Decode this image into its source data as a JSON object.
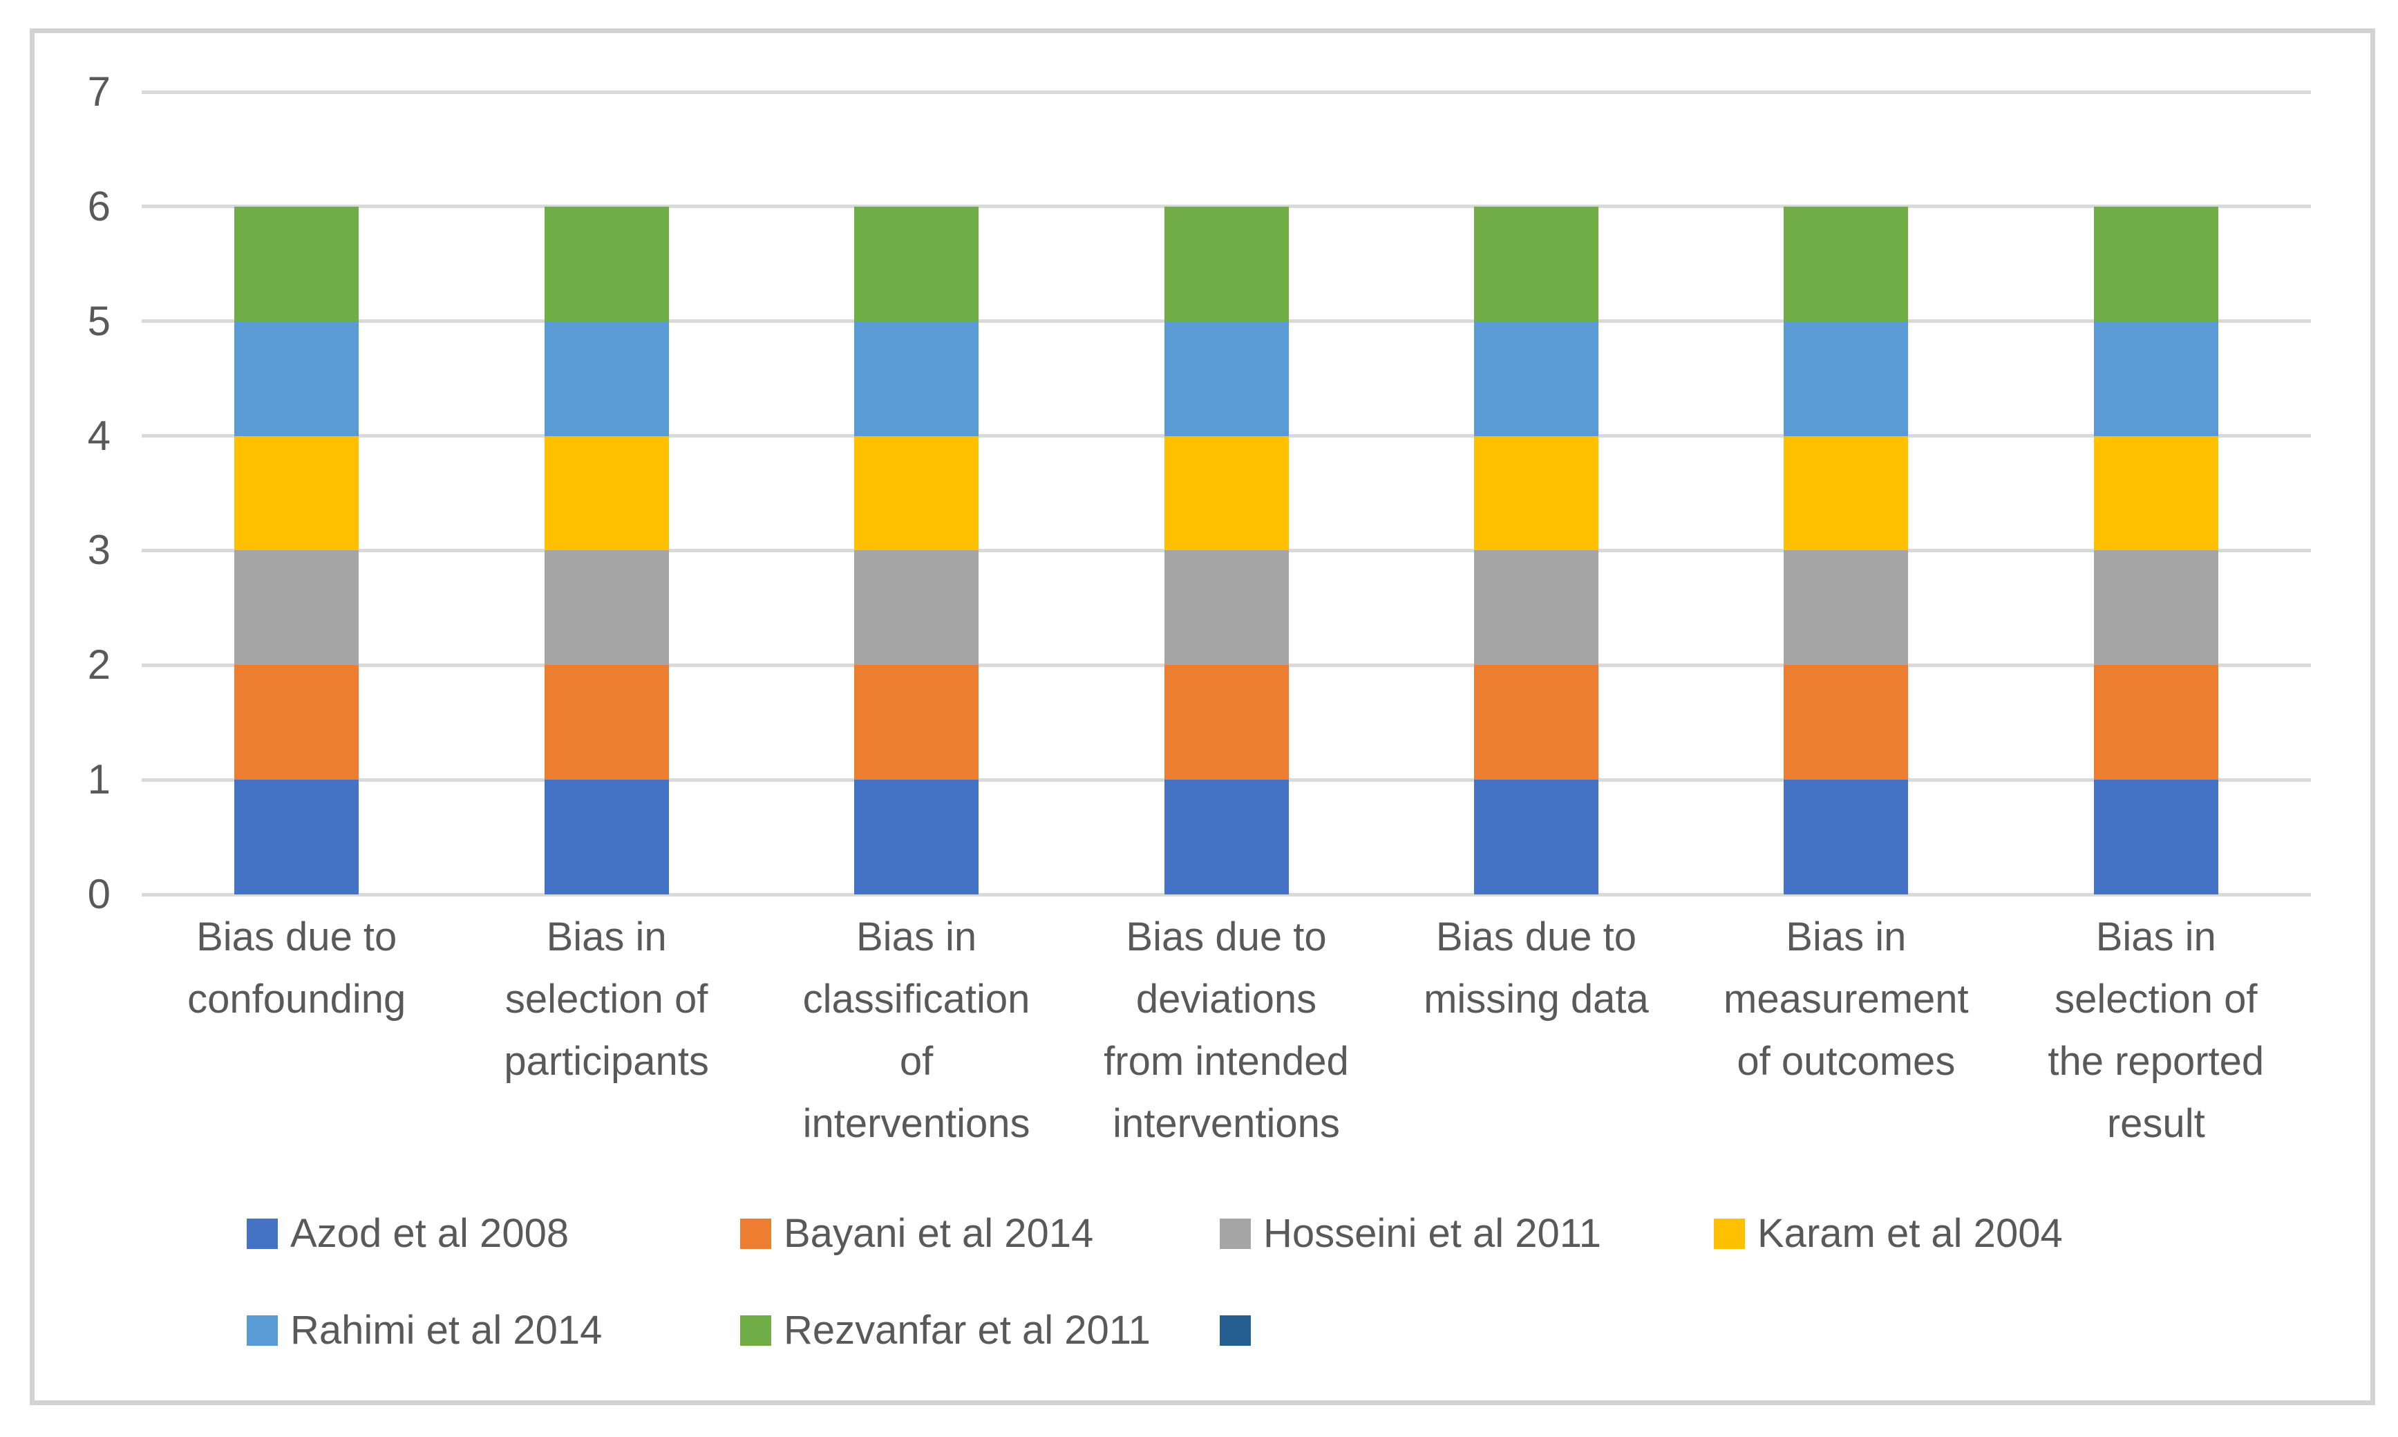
{
  "chart_data": {
    "type": "bar",
    "stacked": true,
    "title": "",
    "xlabel": "",
    "ylabel": "",
    "ylim": [
      0,
      7
    ],
    "ytick_interval": 1,
    "yticks": [
      "0",
      "1",
      "2",
      "3",
      "4",
      "5",
      "6",
      "7"
    ],
    "grid": true,
    "legend_position": "bottom",
    "categories": [
      [
        "Bias due to",
        "confounding"
      ],
      [
        "Bias in",
        "selection of",
        "participants"
      ],
      [
        "Bias in",
        "classification",
        "of",
        "interventions"
      ],
      [
        "Bias due to",
        "deviations",
        "from intended",
        "interventions"
      ],
      [
        "Bias due to",
        "missing data"
      ],
      [
        "Bias in",
        "measurement",
        "of outcomes"
      ],
      [
        "Bias in",
        "selection of",
        "the reported",
        "result"
      ]
    ],
    "series": [
      {
        "name": "Azod et al 2008",
        "color": "#4472C4",
        "values": [
          1,
          1,
          1,
          1,
          1,
          1,
          1
        ]
      },
      {
        "name": "Bayani et al 2014",
        "color": "#ED7D31",
        "values": [
          1,
          1,
          1,
          1,
          1,
          1,
          1
        ]
      },
      {
        "name": "Hosseini et al 2011",
        "color": "#A5A5A5",
        "values": [
          1,
          1,
          1,
          1,
          1,
          1,
          1
        ]
      },
      {
        "name": "Karam et al 2004",
        "color": "#FFC000",
        "values": [
          1,
          1,
          1,
          1,
          1,
          1,
          1
        ]
      },
      {
        "name": "Rahimi et al 2014",
        "color": "#5B9BD5",
        "values": [
          1,
          1,
          1,
          1,
          1,
          1,
          1
        ]
      },
      {
        "name": "Rezvanfar et al 2011",
        "color": "#70AD47",
        "values": [
          1,
          1,
          1,
          1,
          1,
          1,
          1
        ]
      },
      {
        "name": "",
        "color": "#255E91",
        "values": [
          0,
          0,
          0,
          0,
          0,
          0,
          0
        ]
      }
    ],
    "colors": {
      "grid": "#D9D9D9",
      "frame_border": "#D3D3D3",
      "axis_text": "#595959",
      "background": "#FFFFFF"
    }
  }
}
